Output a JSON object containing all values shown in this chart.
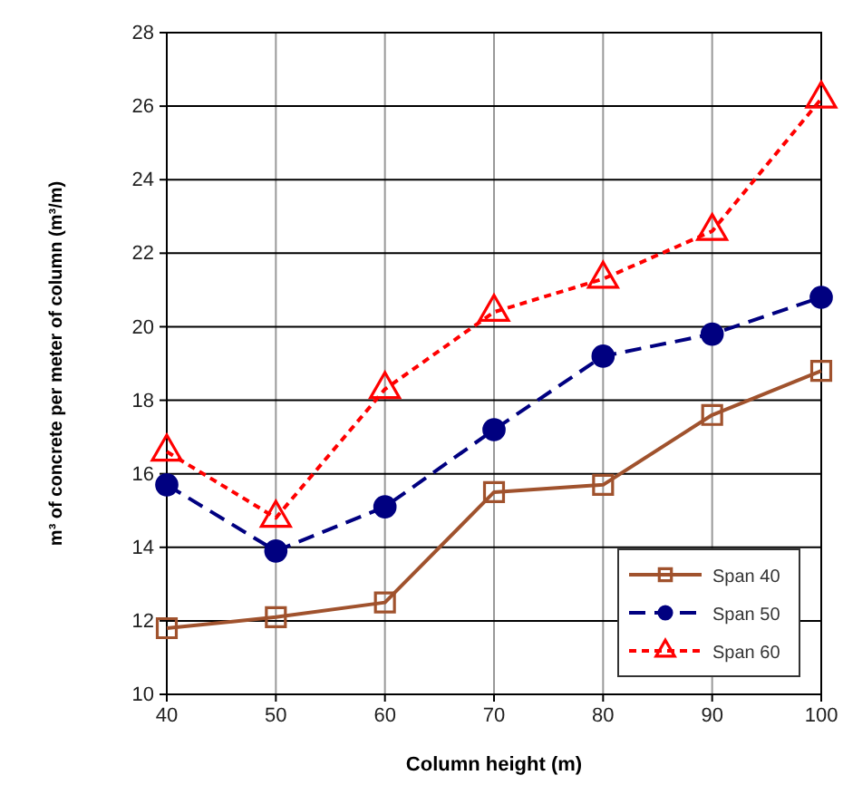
{
  "chart_data": {
    "type": "line",
    "xlabel": "Column height (m)",
    "ylabel": "m³ of concrete per meter of column (m³/m)",
    "x": [
      40,
      50,
      60,
      70,
      80,
      90,
      100
    ],
    "series": [
      {
        "name": "Span 40",
        "color": "#a0522d",
        "marker": "square",
        "line_style": "solid",
        "values": [
          11.8,
          12.1,
          12.5,
          15.5,
          15.7,
          17.6,
          18.8
        ]
      },
      {
        "name": "Span 50",
        "color": "#000080",
        "marker": "circle",
        "line_style": "dashed",
        "values": [
          15.7,
          13.9,
          15.1,
          17.2,
          19.2,
          19.8,
          20.8
        ]
      },
      {
        "name": "Span 60",
        "color": "#ff0000",
        "marker": "triangle",
        "line_style": "dotted",
        "values": [
          16.6,
          14.8,
          18.3,
          20.4,
          21.3,
          22.6,
          26.2
        ]
      }
    ],
    "xlim": [
      40,
      100
    ],
    "xticks": [
      40,
      50,
      60,
      70,
      80,
      90,
      100
    ],
    "ylim": [
      10,
      28
    ],
    "yticks": [
      10,
      12,
      14,
      16,
      18,
      20,
      22,
      24,
      26,
      28
    ],
    "grid": true,
    "legend": "bottom right"
  }
}
